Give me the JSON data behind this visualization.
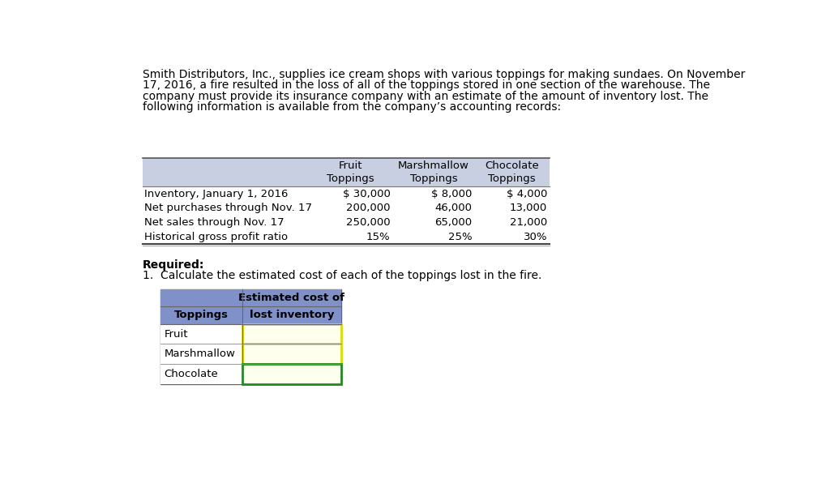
{
  "background_color": "#ffffff",
  "intro_text_lines": [
    "Smith Distributors, Inc., supplies ice cream shops with various toppings for making sundaes. On November",
    "17, 2016, a fire resulted in the loss of all of the toppings stored in one section of the warehouse. The",
    "company must provide its insurance company with an estimate of the amount of inventory lost. The",
    "following information is available from the company’s accounting records:"
  ],
  "top_table": {
    "header_bg": "#c8cfe0",
    "col_headers": [
      "",
      "Fruit\nToppings",
      "Marshmallow\nToppings",
      "Chocolate\nToppings"
    ],
    "rows": [
      [
        "Inventory, January 1, 2016",
        "$ 30,000",
        "$ 8,000",
        "$ 4,000"
      ],
      [
        "Net purchases through Nov. 17",
        "200,000",
        "46,000",
        "13,000"
      ],
      [
        "Net sales through Nov. 17",
        "250,000",
        "65,000",
        "21,000"
      ],
      [
        "Historical gross profit ratio",
        "15%",
        "25%",
        "30%"
      ]
    ]
  },
  "required_line1": "Required:",
  "required_line2": "1.  Calculate the estimated cost of each of the toppings lost in the fire.",
  "bottom_table": {
    "header_bg": "#8090c8",
    "answer_bg": "#ffffee",
    "answer_border_yellow": "#dddd00",
    "answer_border_green": "#228822",
    "col1_header": "Toppings",
    "col2_header1": "Estimated cost of",
    "col2_header2": "lost inventory",
    "rows": [
      "Fruit",
      "Marshmallow",
      "Chocolate"
    ]
  }
}
